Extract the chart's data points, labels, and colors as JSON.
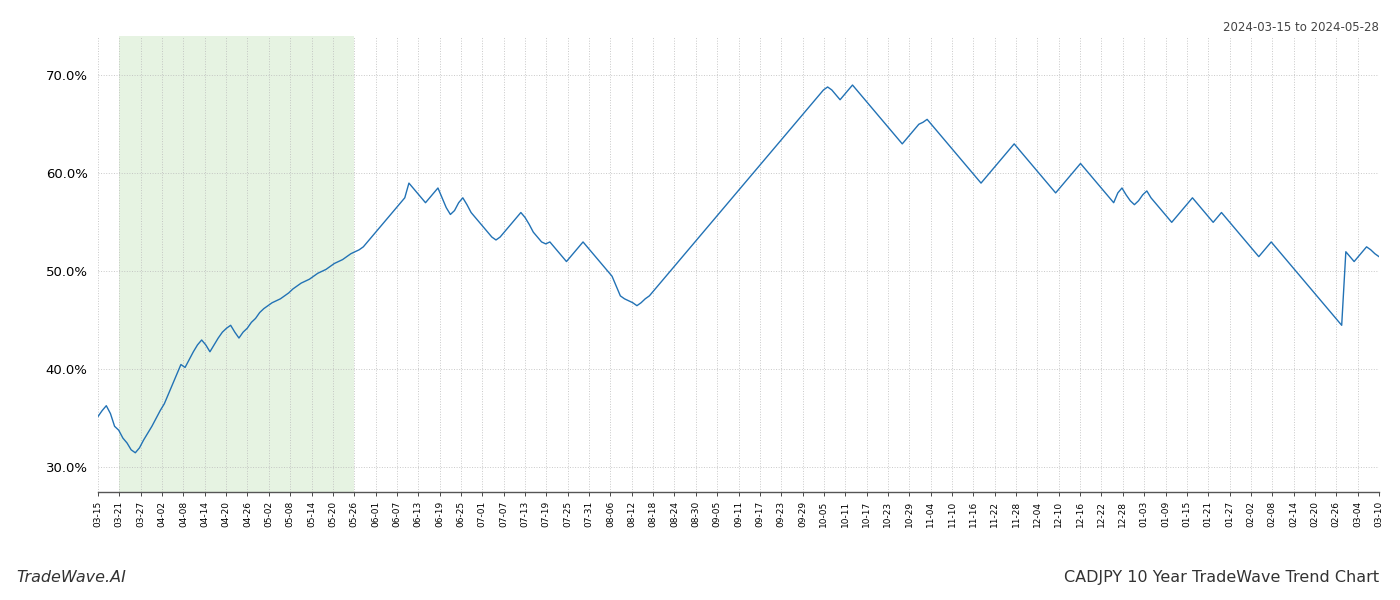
{
  "title_top_right": "2024-03-15 to 2024-05-28",
  "title_bottom_left": "TradeWave.AI",
  "title_bottom_right": "CADJPY 10 Year TradeWave Trend Chart",
  "line_color": "#2272b5",
  "line_width": 1.0,
  "shade_color": "#c8e6c0",
  "shade_alpha": 0.45,
  "background_color": "#ffffff",
  "grid_color": "#bbbbbb",
  "grid_style": ":",
  "grid_alpha": 0.8,
  "ylim": [
    27.5,
    74.0
  ],
  "yticks": [
    30.0,
    40.0,
    50.0,
    60.0,
    70.0
  ],
  "shade_start_label": "03-21",
  "shade_end_label": "05-26",
  "x_labels": [
    "03-15",
    "03-21",
    "03-27",
    "04-02",
    "04-08",
    "04-14",
    "04-20",
    "04-26",
    "05-02",
    "05-08",
    "05-14",
    "05-20",
    "05-26",
    "06-01",
    "06-07",
    "06-13",
    "06-19",
    "06-25",
    "07-01",
    "07-07",
    "07-13",
    "07-19",
    "07-25",
    "07-31",
    "08-06",
    "08-12",
    "08-18",
    "08-24",
    "08-30",
    "09-05",
    "09-11",
    "09-17",
    "09-23",
    "09-29",
    "10-05",
    "10-11",
    "10-17",
    "10-23",
    "10-29",
    "11-04",
    "11-10",
    "11-16",
    "11-22",
    "11-28",
    "12-04",
    "12-10",
    "12-16",
    "12-22",
    "12-28",
    "01-03",
    "01-09",
    "01-15",
    "01-21",
    "01-27",
    "02-02",
    "02-08",
    "02-14",
    "02-20",
    "02-26",
    "03-04",
    "03-10"
  ],
  "values": [
    35.2,
    35.8,
    36.3,
    35.5,
    34.2,
    33.8,
    33.0,
    32.5,
    31.8,
    31.5,
    32.0,
    32.8,
    33.5,
    34.2,
    35.0,
    35.8,
    36.5,
    37.5,
    38.5,
    39.5,
    40.5,
    40.2,
    41.0,
    41.8,
    42.5,
    43.0,
    42.5,
    41.8,
    42.5,
    43.2,
    43.8,
    44.2,
    44.5,
    43.8,
    43.2,
    43.8,
    44.2,
    44.8,
    45.2,
    45.8,
    46.2,
    46.5,
    46.8,
    47.0,
    47.2,
    47.5,
    47.8,
    48.2,
    48.5,
    48.8,
    49.0,
    49.2,
    49.5,
    49.8,
    50.0,
    50.2,
    50.5,
    50.8,
    51.0,
    51.2,
    51.5,
    51.8,
    52.0,
    52.2,
    52.5,
    53.0,
    53.5,
    54.0,
    54.5,
    55.0,
    55.5,
    56.0,
    56.5,
    57.0,
    57.5,
    59.0,
    58.5,
    58.0,
    57.5,
    57.0,
    57.5,
    58.0,
    58.5,
    57.5,
    56.5,
    55.8,
    56.2,
    57.0,
    57.5,
    56.8,
    56.0,
    55.5,
    55.0,
    54.5,
    54.0,
    53.5,
    53.2,
    53.5,
    54.0,
    54.5,
    55.0,
    55.5,
    56.0,
    55.5,
    54.8,
    54.0,
    53.5,
    53.0,
    52.8,
    53.0,
    52.5,
    52.0,
    51.5,
    51.0,
    51.5,
    52.0,
    52.5,
    53.0,
    52.5,
    52.0,
    51.5,
    51.0,
    50.5,
    50.0,
    49.5,
    48.5,
    47.5,
    47.2,
    47.0,
    46.8,
    46.5,
    46.8,
    47.2,
    47.5,
    48.0,
    48.5,
    49.0,
    49.5,
    50.0,
    50.5,
    51.0,
    51.5,
    52.0,
    52.5,
    53.0,
    53.5,
    54.0,
    54.5,
    55.0,
    55.5,
    56.0,
    56.5,
    57.0,
    57.5,
    58.0,
    58.5,
    59.0,
    59.5,
    60.0,
    60.5,
    61.0,
    61.5,
    62.0,
    62.5,
    63.0,
    63.5,
    64.0,
    64.5,
    65.0,
    65.5,
    66.0,
    66.5,
    67.0,
    67.5,
    68.0,
    68.5,
    68.8,
    68.5,
    68.0,
    67.5,
    68.0,
    68.5,
    69.0,
    68.5,
    68.0,
    67.5,
    67.0,
    66.5,
    66.0,
    65.5,
    65.0,
    64.5,
    64.0,
    63.5,
    63.0,
    63.5,
    64.0,
    64.5,
    65.0,
    65.2,
    65.5,
    65.0,
    64.5,
    64.0,
    63.5,
    63.0,
    62.5,
    62.0,
    61.5,
    61.0,
    60.5,
    60.0,
    59.5,
    59.0,
    59.5,
    60.0,
    60.5,
    61.0,
    61.5,
    62.0,
    62.5,
    63.0,
    62.5,
    62.0,
    61.5,
    61.0,
    60.5,
    60.0,
    59.5,
    59.0,
    58.5,
    58.0,
    58.5,
    59.0,
    59.5,
    60.0,
    60.5,
    61.0,
    60.5,
    60.0,
    59.5,
    59.0,
    58.5,
    58.0,
    57.5,
    57.0,
    58.0,
    58.5,
    57.8,
    57.2,
    56.8,
    57.2,
    57.8,
    58.2,
    57.5,
    57.0,
    56.5,
    56.0,
    55.5,
    55.0,
    55.5,
    56.0,
    56.5,
    57.0,
    57.5,
    57.0,
    56.5,
    56.0,
    55.5,
    55.0,
    55.5,
    56.0,
    55.5,
    55.0,
    54.5,
    54.0,
    53.5,
    53.0,
    52.5,
    52.0,
    51.5,
    52.0,
    52.5,
    53.0,
    52.5,
    52.0,
    51.5,
    51.0,
    50.5,
    50.0,
    49.5,
    49.0,
    48.5,
    48.0,
    47.5,
    47.0,
    46.5,
    46.0,
    45.5,
    45.0,
    44.5,
    52.0,
    51.5,
    51.0,
    51.5,
    52.0,
    52.5,
    52.2,
    51.8,
    51.5
  ]
}
